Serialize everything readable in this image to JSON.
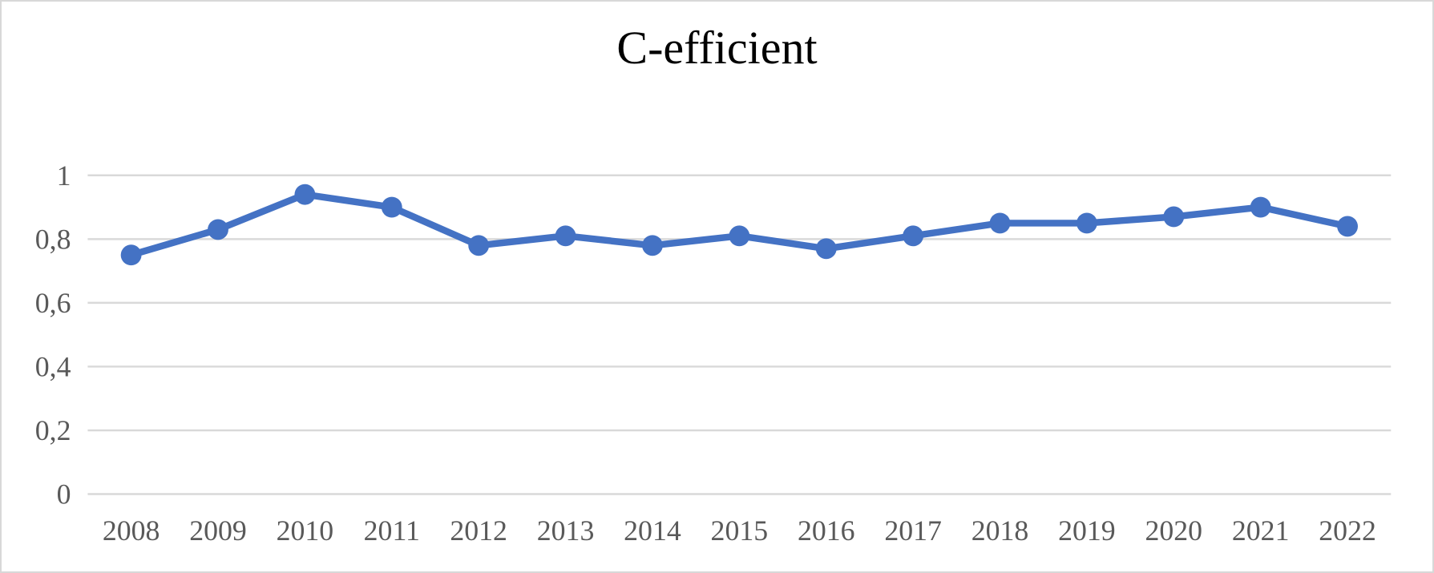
{
  "chart_data": {
    "type": "line",
    "title": "C-efficient",
    "categories": [
      "2008",
      "2009",
      "2010",
      "2011",
      "2012",
      "2013",
      "2014",
      "2015",
      "2016",
      "2017",
      "2018",
      "2019",
      "2020",
      "2021",
      "2022"
    ],
    "series": [
      {
        "name": "C-efficient",
        "values": [
          0.75,
          0.83,
          0.94,
          0.9,
          0.78,
          0.81,
          0.78,
          0.81,
          0.77,
          0.81,
          0.85,
          0.85,
          0.87,
          0.9,
          0.84
        ]
      }
    ],
    "xlabel": "",
    "ylabel": "",
    "ylim": [
      0,
      1
    ],
    "ytick_values": [
      0,
      0.2,
      0.4,
      0.6,
      0.8,
      1
    ],
    "ytick_labels": [
      "0",
      "0,2",
      "0,4",
      "0,6",
      "0,8",
      "1"
    ],
    "grid": "horizontal",
    "legend_position": "none",
    "colors": {
      "line": "#4472C4",
      "marker": "#4472C4",
      "gridline": "#D9D9D9",
      "axis_text": "#595959",
      "title_text": "#000000",
      "frame_border": "#D8D8D8",
      "background": "#FFFFFF"
    },
    "marker_style": "circle"
  }
}
